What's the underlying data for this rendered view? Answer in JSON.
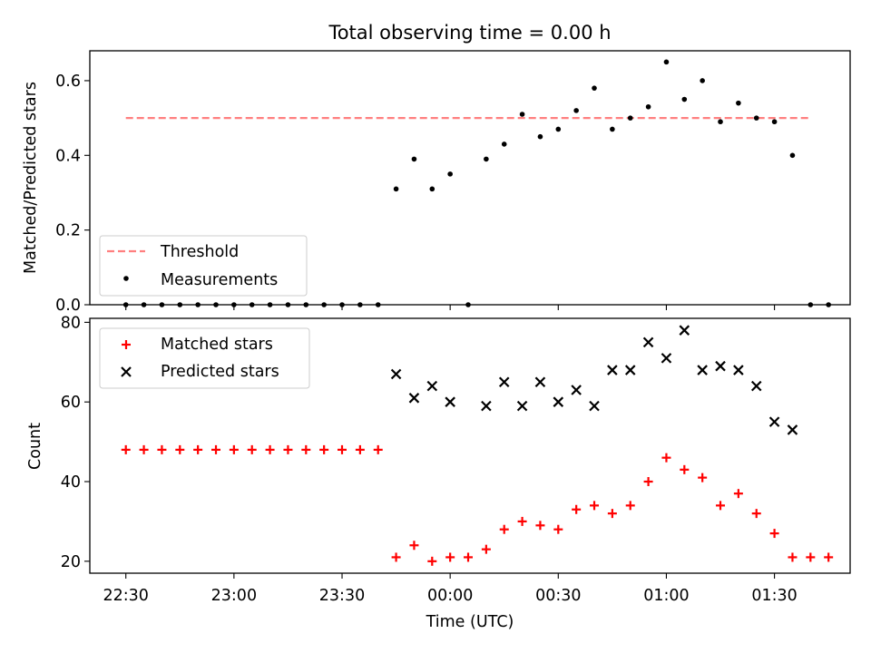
{
  "title": "Total observing time = 0.00 h",
  "colors": {
    "threshold": "#ff7f7f",
    "measurements": "#000000",
    "matched": "#ff0000",
    "predicted": "#000000"
  },
  "chart_data": [
    {
      "type": "scatter",
      "panel": "top",
      "xlabel": "",
      "ylabel": "Matched/Predicted stars",
      "xlim": [
        "22:20",
        "01:51"
      ],
      "ylim": [
        0,
        0.68
      ],
      "yticks": [
        "0.0",
        "0.2",
        "0.4",
        "0.6"
      ],
      "ytick_values": [
        0,
        0.2,
        0.4,
        0.6
      ],
      "legend_position": "lower left",
      "legend": [
        "Threshold",
        "Measurements"
      ],
      "threshold": {
        "name": "Threshold",
        "y": 0.5,
        "x_start": "22:30",
        "x_end": "01:40"
      },
      "series": [
        {
          "name": "Measurements",
          "marker": "dot",
          "points": [
            {
              "x": "22:30",
              "y": 0.0
            },
            {
              "x": "22:35",
              "y": 0.0
            },
            {
              "x": "22:40",
              "y": 0.0
            },
            {
              "x": "22:45",
              "y": 0.0
            },
            {
              "x": "22:50",
              "y": 0.0
            },
            {
              "x": "22:55",
              "y": 0.0
            },
            {
              "x": "23:00",
              "y": 0.0
            },
            {
              "x": "23:05",
              "y": 0.0
            },
            {
              "x": "23:10",
              "y": 0.0
            },
            {
              "x": "23:15",
              "y": 0.0
            },
            {
              "x": "23:20",
              "y": 0.0
            },
            {
              "x": "23:25",
              "y": 0.0
            },
            {
              "x": "23:30",
              "y": 0.0
            },
            {
              "x": "23:35",
              "y": 0.0
            },
            {
              "x": "23:40",
              "y": 0.0
            },
            {
              "x": "23:45",
              "y": 0.31
            },
            {
              "x": "23:50",
              "y": 0.39
            },
            {
              "x": "23:55",
              "y": 0.31
            },
            {
              "x": "00:00",
              "y": 0.35
            },
            {
              "x": "00:05",
              "y": 0.0
            },
            {
              "x": "00:10",
              "y": 0.39
            },
            {
              "x": "00:15",
              "y": 0.43
            },
            {
              "x": "00:20",
              "y": 0.51
            },
            {
              "x": "00:25",
              "y": 0.45
            },
            {
              "x": "00:30",
              "y": 0.47
            },
            {
              "x": "00:35",
              "y": 0.52
            },
            {
              "x": "00:40",
              "y": 0.58
            },
            {
              "x": "00:45",
              "y": 0.47
            },
            {
              "x": "00:50",
              "y": 0.5
            },
            {
              "x": "00:55",
              "y": 0.53
            },
            {
              "x": "01:00",
              "y": 0.65
            },
            {
              "x": "01:05",
              "y": 0.55
            },
            {
              "x": "01:10",
              "y": 0.6
            },
            {
              "x": "01:15",
              "y": 0.49
            },
            {
              "x": "01:20",
              "y": 0.54
            },
            {
              "x": "01:25",
              "y": 0.5
            },
            {
              "x": "01:30",
              "y": 0.49
            },
            {
              "x": "01:35",
              "y": 0.4
            },
            {
              "x": "01:40",
              "y": 0.0
            },
            {
              "x": "01:45",
              "y": 0.0
            }
          ]
        }
      ]
    },
    {
      "type": "scatter",
      "panel": "bottom",
      "xlabel": "Time (UTC)",
      "ylabel": "Count",
      "xlim": [
        "22:20",
        "01:51"
      ],
      "ylim": [
        17,
        81
      ],
      "xticks": [
        "22:30",
        "23:00",
        "23:30",
        "00:00",
        "00:30",
        "01:00",
        "01:30"
      ],
      "yticks": [
        "20",
        "40",
        "60",
        "80"
      ],
      "ytick_values": [
        20,
        40,
        60,
        80
      ],
      "legend_position": "upper left",
      "legend": [
        "Matched stars",
        "Predicted stars"
      ],
      "series": [
        {
          "name": "Matched stars",
          "marker": "plus",
          "points": [
            {
              "x": "22:30",
              "y": 48
            },
            {
              "x": "22:35",
              "y": 48
            },
            {
              "x": "22:40",
              "y": 48
            },
            {
              "x": "22:45",
              "y": 48
            },
            {
              "x": "22:50",
              "y": 48
            },
            {
              "x": "22:55",
              "y": 48
            },
            {
              "x": "23:00",
              "y": 48
            },
            {
              "x": "23:05",
              "y": 48
            },
            {
              "x": "23:10",
              "y": 48
            },
            {
              "x": "23:15",
              "y": 48
            },
            {
              "x": "23:20",
              "y": 48
            },
            {
              "x": "23:25",
              "y": 48
            },
            {
              "x": "23:30",
              "y": 48
            },
            {
              "x": "23:35",
              "y": 48
            },
            {
              "x": "23:40",
              "y": 48
            },
            {
              "x": "23:45",
              "y": 21
            },
            {
              "x": "23:50",
              "y": 24
            },
            {
              "x": "23:55",
              "y": 20
            },
            {
              "x": "00:00",
              "y": 21
            },
            {
              "x": "00:05",
              "y": 21
            },
            {
              "x": "00:10",
              "y": 23
            },
            {
              "x": "00:15",
              "y": 28
            },
            {
              "x": "00:20",
              "y": 30
            },
            {
              "x": "00:25",
              "y": 29
            },
            {
              "x": "00:30",
              "y": 28
            },
            {
              "x": "00:35",
              "y": 33
            },
            {
              "x": "00:40",
              "y": 34
            },
            {
              "x": "00:45",
              "y": 32
            },
            {
              "x": "00:50",
              "y": 34
            },
            {
              "x": "00:55",
              "y": 40
            },
            {
              "x": "01:00",
              "y": 46
            },
            {
              "x": "01:05",
              "y": 43
            },
            {
              "x": "01:10",
              "y": 41
            },
            {
              "x": "01:15",
              "y": 34
            },
            {
              "x": "01:20",
              "y": 37
            },
            {
              "x": "01:25",
              "y": 32
            },
            {
              "x": "01:30",
              "y": 27
            },
            {
              "x": "01:35",
              "y": 21
            },
            {
              "x": "01:40",
              "y": 21
            },
            {
              "x": "01:45",
              "y": 21
            }
          ]
        },
        {
          "name": "Predicted stars",
          "marker": "x",
          "points": [
            {
              "x": "23:45",
              "y": 67
            },
            {
              "x": "23:50",
              "y": 61
            },
            {
              "x": "23:55",
              "y": 64
            },
            {
              "x": "00:00",
              "y": 60
            },
            {
              "x": "00:10",
              "y": 59
            },
            {
              "x": "00:15",
              "y": 65
            },
            {
              "x": "00:20",
              "y": 59
            },
            {
              "x": "00:25",
              "y": 65
            },
            {
              "x": "00:30",
              "y": 60
            },
            {
              "x": "00:35",
              "y": 63
            },
            {
              "x": "00:40",
              "y": 59
            },
            {
              "x": "00:45",
              "y": 68
            },
            {
              "x": "00:50",
              "y": 68
            },
            {
              "x": "00:55",
              "y": 75
            },
            {
              "x": "01:00",
              "y": 71
            },
            {
              "x": "01:05",
              "y": 78
            },
            {
              "x": "01:10",
              "y": 68
            },
            {
              "x": "01:15",
              "y": 69
            },
            {
              "x": "01:20",
              "y": 68
            },
            {
              "x": "01:25",
              "y": 64
            },
            {
              "x": "01:30",
              "y": 55
            },
            {
              "x": "01:35",
              "y": 53
            }
          ]
        }
      ]
    }
  ]
}
